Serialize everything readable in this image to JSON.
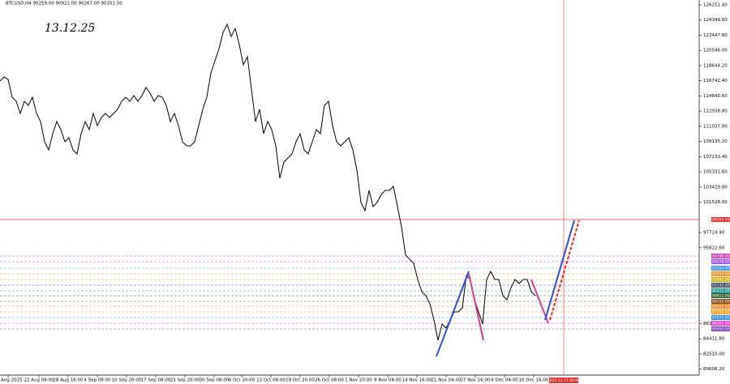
{
  "chart_data": {
    "type": "line",
    "title": "BTCUSD,H4  90259.00 90922.00 90267.00 90351.50",
    "annotation": "13.12.25",
    "color": "#000000",
    "values": [
      116710,
      117217,
      116913,
      114680,
      114172,
      112650,
      114172,
      113665,
      114680,
      112650,
      111635,
      109097,
      108082,
      110112,
      111635,
      110620,
      109097,
      109605,
      108082,
      107575,
      110112,
      111635,
      110620,
      112650,
      111127,
      112142,
      112650,
      112142,
      112650,
      113157,
      114172,
      114680,
      114172,
      114883,
      114172,
      114883,
      115898,
      115187,
      114172,
      114883,
      114680,
      113665,
      111635,
      112650,
      111127,
      109097,
      108590,
      108590,
      109097,
      111127,
      113157,
      114680,
      117725,
      119247,
      120770,
      122800,
      123815,
      122292,
      123307,
      121277,
      118740,
      119755,
      115695,
      111635,
      113157,
      110112,
      111635,
      110620,
      108590,
      104530,
      106560,
      107067,
      107575,
      109097,
      110112,
      108082,
      107575,
      109097,
      110620,
      110112,
      113665,
      114172,
      111127,
      109097,
      108590,
      109097,
      109605,
      108082,
      105545,
      101485,
      100470,
      103007,
      100977,
      101485,
      102500,
      103007,
      103007,
      103515,
      100977,
      98440,
      94887,
      94380,
      93872,
      91842,
      90320,
      89812,
      88797,
      86767,
      84230,
      86260,
      85752,
      86767,
      87782,
      87782,
      88290,
      92350,
      91842,
      89305,
      87782,
      86260,
      91842,
      92857,
      91842,
      91842,
      89812,
      89305,
      90827,
      91842,
      91335,
      91842,
      91842,
      90320,
      89812
    ],
    "xlim": [
      0,
      172.4
    ],
    "xticks": [
      {
        "value": 2,
        "label": "15 Aug 2025"
      },
      {
        "value": 9.6,
        "label": "22 Aug 08:00"
      },
      {
        "value": 16.8,
        "label": "28 Aug 16:00"
      },
      {
        "value": 24,
        "label": "4 Sep 08:00"
      },
      {
        "value": 31.2,
        "label": "10 Sep 20:00"
      },
      {
        "value": 38.4,
        "label": "17 Sep 08:00"
      },
      {
        "value": 45.6,
        "label": "23 Sep 20:00"
      },
      {
        "value": 52.8,
        "label": "30 Sep 08:00"
      },
      {
        "value": 59.6,
        "label": "6 Oct 20:00"
      },
      {
        "value": 66.8,
        "label": "13 Oct 08:00"
      },
      {
        "value": 74,
        "label": "19 Oct 20:00"
      },
      {
        "value": 81.2,
        "label": "26 Oct 08:00"
      },
      {
        "value": 88.4,
        "label": "1 Nov 20:00"
      },
      {
        "value": 95.6,
        "label": "8 Nov 04:00"
      },
      {
        "value": 102.8,
        "label": "14 Nov 16:00"
      },
      {
        "value": 110,
        "label": "21 Nov 04:00"
      },
      {
        "value": 117.2,
        "label": "27 Nov 16:00"
      },
      {
        "value": 124.4,
        "label": "4 Dec 04:00"
      },
      {
        "value": 131.6,
        "label": "10 Dec 16:00"
      }
    ],
    "ylim": [
      79865.5,
      126860
    ],
    "yticks": [
      {
        "value": 126251.4,
        "label": "126251.40"
      },
      {
        "value": 124349.6,
        "label": "124349.60"
      },
      {
        "value": 122447.8,
        "label": "122447.80"
      },
      {
        "value": 120546,
        "label": "120546.00"
      },
      {
        "value": 118644.2,
        "label": "118644.20"
      },
      {
        "value": 116742.4,
        "label": "116742.40"
      },
      {
        "value": 114840.6,
        "label": "114840.60"
      },
      {
        "value": 112938.8,
        "label": "112938.80"
      },
      {
        "value": 111037,
        "label": "111037.00"
      },
      {
        "value": 109135.2,
        "label": "109135.20"
      },
      {
        "value": 107233.4,
        "label": "107233.40"
      },
      {
        "value": 105331.6,
        "label": "105331.60"
      },
      {
        "value": 103429.8,
        "label": "103429.80"
      },
      {
        "value": 101528,
        "label": "101528.00"
      },
      {
        "value": 97724.4,
        "label": "97724.40"
      },
      {
        "value": 95822.6,
        "label": "95822.60"
      },
      {
        "value": 86313.6,
        "label": "86313.60"
      },
      {
        "value": 84411.8,
        "label": "84411.80"
      },
      {
        "value": 82510,
        "label": "82510.00"
      },
      {
        "value": 80608.2,
        "label": "80608.20"
      }
    ],
    "price_line": {
      "value": 99354.5,
      "label": "99354.50",
      "color": "#e03030"
    },
    "cursor_line": {
      "value": 139,
      "label": "2025.12.17 00:00",
      "color": "#e03030"
    },
    "levels": [
      {
        "value": 94786,
        "label": "94786.00",
        "color": "#d040c0"
      },
      {
        "value": 94076,
        "label": "94076.00",
        "color": "#a050e0"
      },
      {
        "value": 93264,
        "label": "93264.00",
        "color": "#4090e0"
      },
      {
        "value": 92553,
        "label": "92553.00",
        "color": "#f09020"
      },
      {
        "value": 91842,
        "label": "91842.00",
        "color": "#d0b020"
      },
      {
        "value": 91132,
        "label": "91132.00",
        "color": "#405060"
      },
      {
        "value": 90421,
        "label": "90421.00",
        "color": "#209090"
      },
      {
        "value": 89812,
        "label": "89812.00",
        "color": "#306030"
      },
      {
        "value": 89102,
        "label": "89102.00",
        "color": "#805020"
      },
      {
        "value": 88493,
        "label": "88493.00",
        "color": "#f08020"
      },
      {
        "value": 87782,
        "label": "87782.00",
        "color": "#f0a020"
      },
      {
        "value": 87072,
        "label": "87072.00",
        "color": "#3090e0"
      },
      {
        "value": 86361,
        "label": "86361.00",
        "color": "#e040d0"
      },
      {
        "value": 85650,
        "label": "85650.00",
        "color": "#8040c0"
      }
    ],
    "projections": [
      {
        "color": "#3050d0",
        "dashed": false,
        "x": [
          107.6,
          115.6
        ],
        "y": [
          82200,
          92857
        ]
      },
      {
        "color": "#d04090",
        "dashed": false,
        "x": [
          115.6,
          119.2
        ],
        "y": [
          92553,
          84230
        ]
      },
      {
        "color": "#d04090",
        "dashed": false,
        "x": [
          131,
          135.2
        ],
        "y": [
          91842,
          86361
        ]
      },
      {
        "color": "#3050d0",
        "dashed": false,
        "x": [
          134.4,
          141.6
        ],
        "y": [
          86767,
          99252
        ]
      },
      {
        "color": "#e03030",
        "dashed": true,
        "x": [
          135.6,
          142.8
        ],
        "y": [
          86767,
          99252
        ]
      }
    ]
  }
}
